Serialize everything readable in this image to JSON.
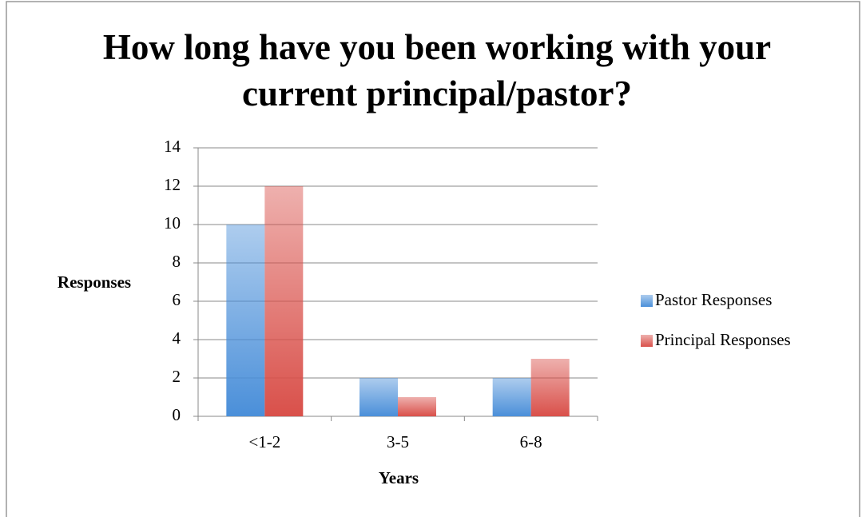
{
  "chart_data": {
    "type": "bar",
    "title": "How long have you been working with your current principal/pastor?",
    "categories": [
      "<1-2",
      "3-5",
      "6-8"
    ],
    "series": [
      {
        "name": "Pastor Responses",
        "color": "#4a8fd9",
        "values": [
          10,
          2,
          2
        ]
      },
      {
        "name": "Principal Responses",
        "color": "#d9504a",
        "values": [
          12,
          1,
          3
        ]
      }
    ],
    "ylim": [
      0,
      14
    ],
    "yticks": [
      0,
      2,
      4,
      6,
      8,
      10,
      12,
      14
    ],
    "ylabel": "Responses",
    "xlabel": "Years",
    "grid": true,
    "legend": "right"
  }
}
